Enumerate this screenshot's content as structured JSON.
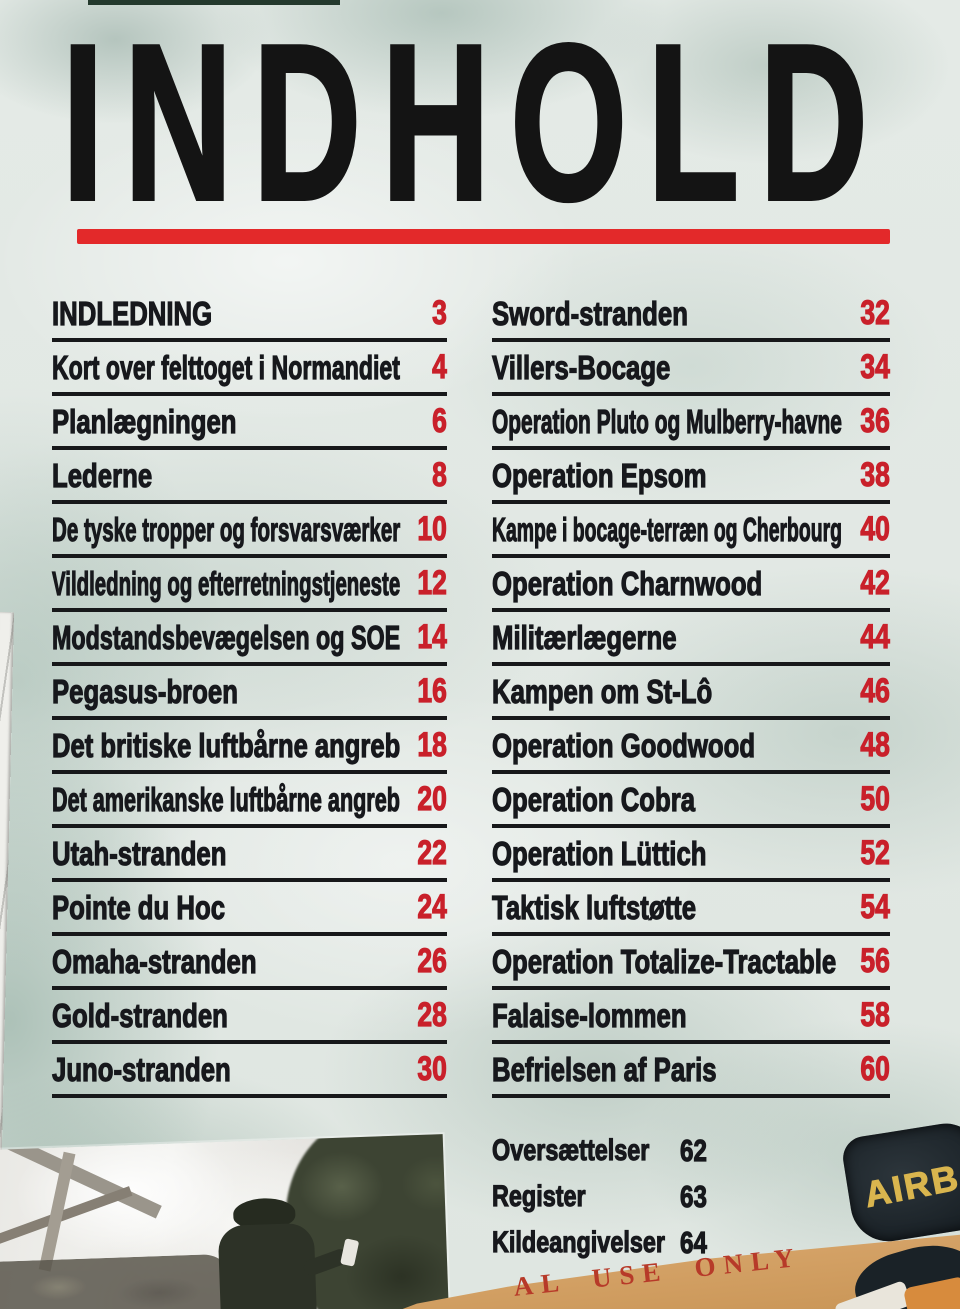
{
  "page_title": "INDHOLD",
  "colors": {
    "title_black": "#141414",
    "rule_red": "#e3292a",
    "page_number_red": "#c9202a",
    "entry_black": "#17181c",
    "paper_tan": "#d7a268",
    "patch_yellow": "#d9b54e",
    "stamp_red": "#b73a29"
  },
  "toc": {
    "left": [
      {
        "label": "INDLEDNING",
        "page": 3
      },
      {
        "label": "Kort over felttoget i Normandiet",
        "page": 4
      },
      {
        "label": "Planlægningen",
        "page": 6
      },
      {
        "label": "Lederne",
        "page": 8
      },
      {
        "label": "De tyske tropper og forsvarsværker",
        "page": 10
      },
      {
        "label": "Vildledning og efterretningstjeneste",
        "page": 12
      },
      {
        "label": "Modstandsbevægelsen og SOE",
        "page": 14
      },
      {
        "label": "Pegasus-broen",
        "page": 16
      },
      {
        "label": "Det britiske luftbårne angreb",
        "page": 18
      },
      {
        "label": "Det amerikanske luftbårne angreb",
        "page": 20
      },
      {
        "label": "Utah-stranden",
        "page": 22
      },
      {
        "label": "Pointe du Hoc",
        "page": 24
      },
      {
        "label": "Omaha-stranden",
        "page": 26
      },
      {
        "label": "Gold-stranden",
        "page": 28
      },
      {
        "label": "Juno-stranden",
        "page": 30
      }
    ],
    "right": [
      {
        "label": "Sword-stranden",
        "page": 32
      },
      {
        "label": "Villers-Bocage",
        "page": 34
      },
      {
        "label": "Operation Pluto og Mulberry-havne",
        "page": 36
      },
      {
        "label": "Operation Epsom",
        "page": 38
      },
      {
        "label": "Kampe i bocage-terræn og Cherbourg",
        "page": 40
      },
      {
        "label": "Operation Charnwood",
        "page": 42
      },
      {
        "label": "Militærlægerne",
        "page": 44
      },
      {
        "label": "Kampen om St-Lô",
        "page": 46
      },
      {
        "label": "Operation Goodwood",
        "page": 48
      },
      {
        "label": "Operation Cobra",
        "page": 50
      },
      {
        "label": "Operation Lüttich",
        "page": 52
      },
      {
        "label": "Taktisk luftstøtte",
        "page": 54
      },
      {
        "label": "Operation Totalize-Tractable",
        "page": 56
      },
      {
        "label": "Falaise-lommen",
        "page": 58
      },
      {
        "label": "Befrielsen af Paris",
        "page": 60
      }
    ],
    "appendix": [
      {
        "label": "Oversættelser",
        "page": 62
      },
      {
        "label": "Register",
        "page": 63
      },
      {
        "label": "Kildeangivelser",
        "page": 64
      }
    ]
  },
  "footer": {
    "stamp_text_visible": "AL USE ONLY",
    "patch_text_visible": "AIRB"
  }
}
